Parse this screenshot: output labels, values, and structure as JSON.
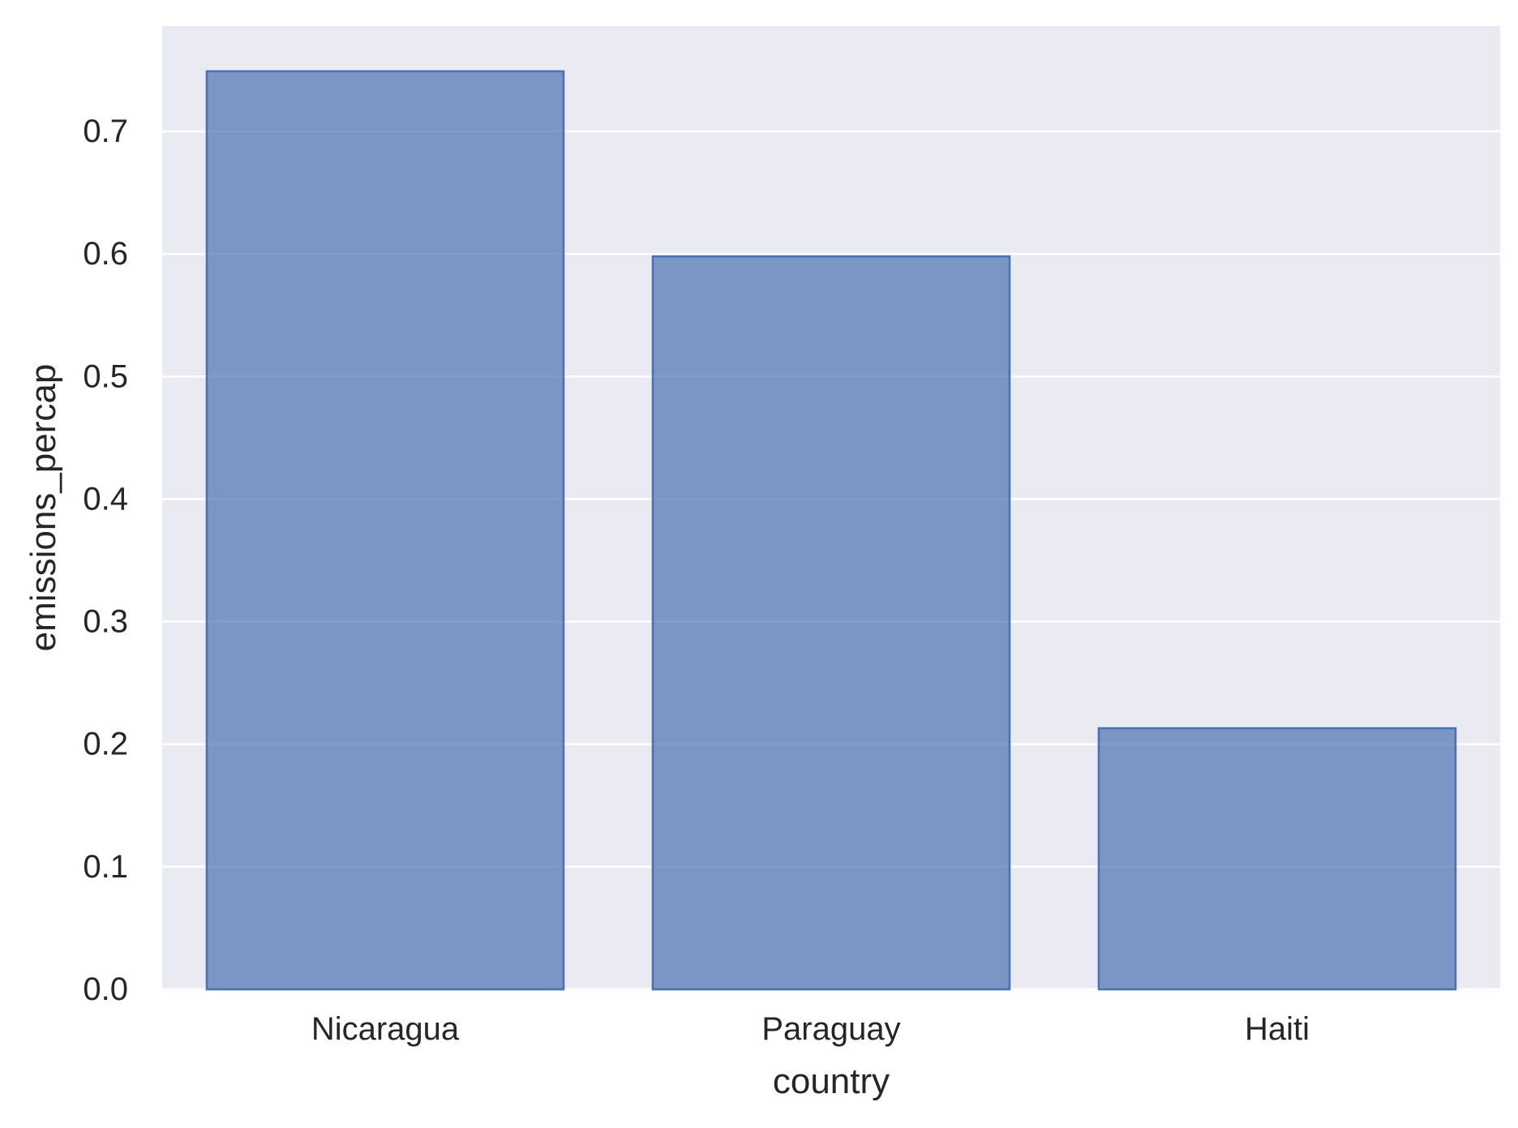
{
  "chart_data": {
    "type": "bar",
    "categories": [
      "Nicaragua",
      "Paraguay",
      "Haiti"
    ],
    "values": [
      0.749,
      0.598,
      0.213
    ],
    "xlabel": "country",
    "ylabel": "emissions_percap",
    "ylim": [
      0,
      0.786
    ],
    "yticks": [
      0.0,
      0.1,
      0.2,
      0.3,
      0.4,
      0.5,
      0.6,
      0.7
    ],
    "ytick_labels": [
      "0.0",
      "0.1",
      "0.2",
      "0.3",
      "0.4",
      "0.5",
      "0.6",
      "0.7"
    ],
    "grid": true,
    "colors": {
      "background": "#eaeaf2",
      "bar_fill": "#4c72b0",
      "bar_fill_opacity": 0.7,
      "bar_edge": "#4c72b0",
      "grid": "#ffffff",
      "text": "#262626"
    }
  }
}
